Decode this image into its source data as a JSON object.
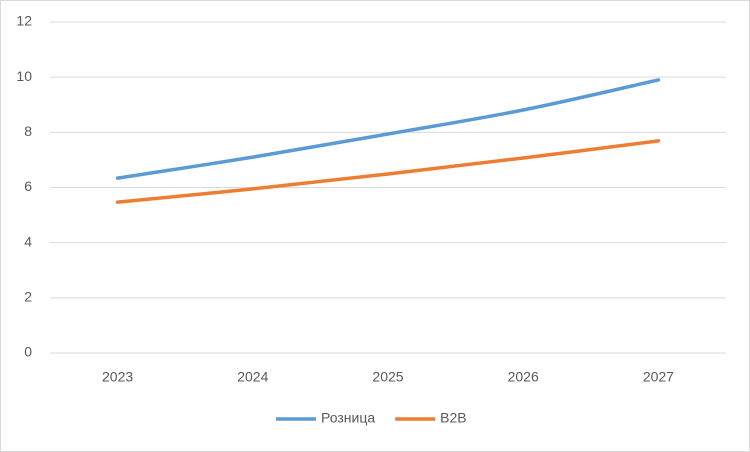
{
  "chart_data": {
    "type": "line",
    "categories": [
      "2023",
      "2024",
      "2025",
      "2026",
      "2027"
    ],
    "series": [
      {
        "name": "Розница",
        "color": "#5b9bd5",
        "values": [
          6.34,
          7.1,
          7.94,
          8.81,
          9.9
        ]
      },
      {
        "name": "B2B",
        "color": "#ed7d31",
        "values": [
          5.47,
          5.95,
          6.49,
          7.07,
          7.69
        ]
      }
    ],
    "ylim": [
      0,
      12
    ],
    "yticks": [
      0,
      2,
      4,
      6,
      8,
      10,
      12
    ],
    "grid": true,
    "legend": "bottom"
  }
}
